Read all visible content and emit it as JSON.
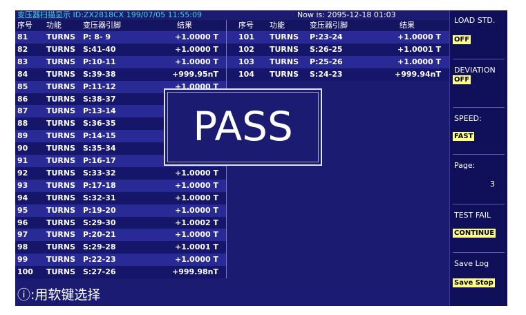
{
  "header": {
    "title": "变压器扫描显示 ID:ZX2818CX 199/07/05 11:55:09",
    "now": "Now is: 2095-12-18 01:03"
  },
  "table": {
    "headers": [
      "序号",
      "功能",
      "变压器引脚",
      "结果"
    ],
    "left_rows": [
      [
        "81",
        "TURNS",
        "P: 8- 9",
        "+1.0000 T"
      ],
      [
        "82",
        "TURNS",
        "S:41-40",
        "+1.0000 T"
      ],
      [
        "83",
        "TURNS",
        "P:10-11",
        "+1.0000 T"
      ],
      [
        "84",
        "TURNS",
        "S:39-38",
        "+999.95nT"
      ],
      [
        "85",
        "TURNS",
        "P:11-12",
        "+1.0000 T"
      ],
      [
        "86",
        "TURNS",
        "S:38-37"
      ],
      [
        "87",
        "TURNS",
        "P:13-14"
      ],
      [
        "88",
        "TURNS",
        "S:36-35"
      ],
      [
        "89",
        "TURNS",
        "P:14-15"
      ],
      [
        "90",
        "TURNS",
        "S:35-34"
      ],
      [
        "91",
        "TURNS",
        "P:16-17"
      ],
      [
        "92",
        "TURNS",
        "S:33-32",
        "+1.0000 T"
      ],
      [
        "93",
        "TURNS",
        "P:17-18",
        "+1.0000 T"
      ],
      [
        "94",
        "TURNS",
        "S:32-31",
        "+1.0000 T"
      ],
      [
        "95",
        "TURNS",
        "P:19-20",
        "+1.0000 T"
      ],
      [
        "96",
        "TURNS",
        "S:29-30",
        "+1.0002 T"
      ],
      [
        "97",
        "TURNS",
        "P:20-21",
        "+1.0000 T"
      ],
      [
        "98",
        "TURNS",
        "S:29-28",
        "+1.0001 T"
      ],
      [
        "99",
        "TURNS",
        "P:22-23",
        "+1.0000 T"
      ],
      [
        "100",
        "TURNS",
        "S:27-26",
        "+999.98nT"
      ]
    ],
    "right_rows": [
      [
        "101",
        "TURNS",
        "P:23-24",
        "+1.0000 T"
      ],
      [
        "102",
        "TURNS",
        "S:26-25",
        "+1.0001 T"
      ],
      [
        "103",
        "TURNS",
        "P:25-26",
        "+1.0000 T"
      ],
      [
        "104",
        "TURNS",
        "S:24-23",
        "+999.94nT"
      ]
    ]
  },
  "overlay": "PASS",
  "hint": "ⓘ:用软键选择",
  "softkeys": [
    {
      "label": "LOAD STD.",
      "button": "OFF"
    },
    {
      "label": "DEVIATION",
      "button": "OFF"
    },
    {
      "label": "SPEED:",
      "button": "FAST"
    },
    {
      "label": "Page:",
      "value": "3"
    },
    {
      "label": "TEST FAIL",
      "button": "CONTINUE"
    },
    {
      "label": "Save Log",
      "button": "Save Stop"
    }
  ]
}
